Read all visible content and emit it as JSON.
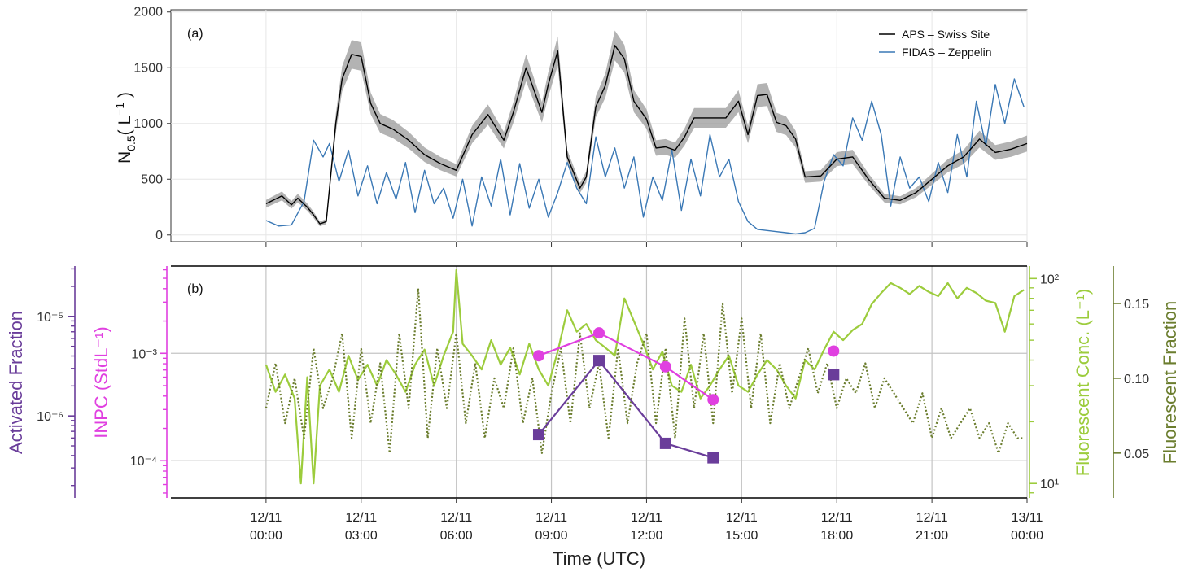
{
  "chart_data": [
    {
      "panel_label": "(a)",
      "type": "line",
      "ylabel": "N0.5 ( L⁻¹ )",
      "ylabel_main": "N",
      "ylabel_sub": "0.5",
      "ylabel_unit_open": "( L",
      "ylabel_unit_exp": "−1",
      "ylabel_unit_close": " )",
      "ylim": [
        -60,
        2020
      ],
      "yticks": [
        "0",
        "500",
        "1000",
        "1500",
        "2000"
      ],
      "x_hours_range": [
        -3,
        24
      ],
      "grid": true,
      "legend_position": "top-right",
      "series": [
        {
          "name": "APS – Swiss Site",
          "color": "#000000",
          "band_color": "#9a9a9a",
          "x": [
            0,
            0.5,
            0.8,
            1.0,
            1.3,
            1.5,
            1.7,
            1.9,
            2.2,
            2.4,
            2.7,
            3.0,
            3.3,
            3.6,
            4.0,
            4.5,
            5.0,
            5.5,
            6.0,
            6.5,
            7.0,
            7.5,
            7.8,
            8.2,
            8.5,
            8.7,
            8.9,
            9.2,
            9.5,
            9.7,
            9.9,
            10.1,
            10.4,
            10.7,
            11.0,
            11.3,
            11.6,
            12.0,
            12.3,
            12.6,
            12.9,
            13.2,
            13.5,
            14.0,
            14.5,
            14.9,
            15.2,
            15.5,
            15.8,
            16.1,
            16.4,
            16.7,
            17.0,
            17.5,
            18.0,
            18.5,
            19.0,
            19.5,
            20.0,
            20.5,
            21.0,
            21.5,
            22.0,
            22.5,
            23.0,
            23.5,
            24.0
          ],
          "y": [
            280,
            350,
            270,
            330,
            250,
            180,
            100,
            120,
            1000,
            1400,
            1620,
            1600,
            1180,
            1000,
            950,
            850,
            720,
            640,
            580,
            900,
            1080,
            850,
            1100,
            1500,
            1260,
            1100,
            1350,
            1650,
            700,
            560,
            420,
            520,
            1150,
            1340,
            1700,
            1580,
            1200,
            1040,
            780,
            790,
            760,
            880,
            1050,
            1050,
            1050,
            1200,
            900,
            1250,
            1260,
            1010,
            980,
            860,
            520,
            530,
            680,
            700,
            500,
            330,
            310,
            380,
            500,
            620,
            700,
            860,
            740,
            770,
            820
          ]
        },
        {
          "name": "FIDAS – Zeppelin",
          "color": "#3a78b5",
          "x": [
            0,
            0.4,
            0.8,
            1.2,
            1.5,
            1.8,
            2.0,
            2.3,
            2.6,
            2.9,
            3.2,
            3.5,
            3.8,
            4.1,
            4.4,
            4.7,
            5.0,
            5.3,
            5.6,
            5.9,
            6.2,
            6.5,
            6.8,
            7.1,
            7.4,
            7.7,
            8.0,
            8.3,
            8.6,
            8.9,
            9.2,
            9.5,
            9.8,
            10.1,
            10.4,
            10.7,
            11.0,
            11.3,
            11.6,
            11.9,
            12.2,
            12.5,
            12.8,
            13.1,
            13.4,
            13.7,
            14.0,
            14.3,
            14.6,
            14.9,
            15.2,
            15.5,
            15.8,
            16.1,
            16.4,
            16.7,
            17.0,
            17.3,
            17.6,
            17.9,
            18.2,
            18.5,
            18.8,
            19.1,
            19.4,
            19.7,
            20.0,
            20.3,
            20.6,
            20.9,
            21.2,
            21.5,
            21.8,
            22.1,
            22.4,
            22.7,
            23.0,
            23.3,
            23.6,
            23.9
          ],
          "y": [
            130,
            80,
            90,
            300,
            850,
            700,
            820,
            480,
            760,
            350,
            620,
            280,
            560,
            320,
            650,
            200,
            580,
            280,
            420,
            150,
            500,
            80,
            520,
            260,
            680,
            180,
            640,
            240,
            500,
            160,
            380,
            650,
            420,
            280,
            880,
            520,
            780,
            420,
            700,
            160,
            520,
            310,
            760,
            220,
            680,
            350,
            900,
            520,
            680,
            300,
            120,
            50,
            40,
            30,
            20,
            10,
            20,
            60,
            480,
            720,
            620,
            1050,
            850,
            1200,
            900,
            260,
            700,
            420,
            520,
            300,
            650,
            380,
            900,
            520,
            1200,
            800,
            1350,
            1000,
            1400,
            1150
          ]
        }
      ]
    },
    {
      "panel_label": "(b)",
      "type": "line",
      "xlabel": "Time (UTC)",
      "x_hours_range": [
        -3,
        24
      ],
      "grid": true,
      "xtick_labels": [
        [
          "12/11",
          "00:00"
        ],
        [
          "12/11",
          "03:00"
        ],
        [
          "12/11",
          "06:00"
        ],
        [
          "12/11",
          "09:00"
        ],
        [
          "12/11",
          "12:00"
        ],
        [
          "12/11",
          "15:00"
        ],
        [
          "12/11",
          "18:00"
        ],
        [
          "12/11",
          "21:00"
        ],
        [
          "13/11",
          "00:00"
        ]
      ],
      "axes": {
        "activated_fraction": {
          "label": "Activated Fraction",
          "scale": "log",
          "ylim": [
            1.5e-07,
            3.2e-05
          ],
          "ticks": [
            "10⁻⁵",
            "10⁻⁶"
          ],
          "tick_values": [
            1e-05,
            1e-06
          ],
          "color": "#6a3d9a"
        },
        "inpc": {
          "label": "INPC (StdL⁻¹)",
          "scale": "log",
          "ylim": [
            4.5e-05,
            0.0065
          ],
          "ticks": [
            "10⁻³",
            "10⁻⁴"
          ],
          "tick_values": [
            0.001,
            0.0001
          ],
          "color": "#e040e0"
        },
        "fluorescent_conc": {
          "label": "Fluorescent Conc. (L⁻¹)",
          "scale": "log",
          "ylim": [
            8.5,
            115
          ],
          "ticks": [
            "10²",
            "10¹"
          ],
          "tick_values": [
            100,
            10
          ],
          "color": "#9ccc3c"
        },
        "fluorescent_fraction": {
          "label": "Fluorescent Fraction",
          "scale": "linear",
          "ylim": [
            0.02,
            0.175
          ],
          "ticks": [
            "0.15",
            "0.10",
            "0.05"
          ],
          "tick_values": [
            0.15,
            0.1,
            0.05
          ],
          "color": "#6b7d2e"
        }
      },
      "series": [
        {
          "name": "Fluorescent Conc.",
          "axis": "fluorescent_conc",
          "style": "solid",
          "color": "#9ccc3c",
          "x": [
            0,
            0.3,
            0.6,
            0.9,
            1.1,
            1.3,
            1.5,
            1.7,
            2.0,
            2.3,
            2.6,
            2.9,
            3.2,
            3.5,
            3.8,
            4.1,
            4.4,
            4.7,
            5.0,
            5.3,
            5.6,
            5.9,
            6.0,
            6.2,
            6.5,
            6.8,
            7.1,
            7.4,
            7.7,
            8.0,
            8.3,
            8.6,
            8.9,
            9.2,
            9.5,
            9.8,
            10.1,
            10.4,
            10.7,
            11.0,
            11.3,
            11.6,
            11.9,
            12.2,
            12.5,
            12.8,
            13.1,
            13.4,
            13.7,
            14.0,
            14.3,
            14.6,
            14.9,
            15.2,
            15.5,
            15.8,
            16.1,
            16.4,
            16.7,
            17.0,
            17.3,
            17.6,
            17.9,
            18.2,
            18.5,
            18.8,
            19.1,
            19.4,
            19.7,
            20.0,
            20.3,
            20.6,
            20.9,
            21.2,
            21.5,
            21.8,
            22.1,
            22.4,
            22.7,
            23.0,
            23.3,
            23.6,
            23.9
          ],
          "y": [
            38,
            28,
            34,
            26,
            10,
            33,
            10,
            30,
            36,
            28,
            42,
            32,
            38,
            30,
            40,
            34,
            28,
            38,
            45,
            30,
            42,
            55,
            110,
            48,
            42,
            36,
            50,
            38,
            46,
            34,
            48,
            36,
            30,
            44,
            70,
            55,
            60,
            50,
            46,
            42,
            80,
            62,
            48,
            36,
            44,
            30,
            28,
            38,
            26,
            30,
            36,
            42,
            30,
            28,
            34,
            40,
            36,
            30,
            26,
            40,
            36,
            45,
            55,
            50,
            56,
            60,
            75,
            85,
            95,
            90,
            84,
            92,
            86,
            82,
            95,
            80,
            90,
            85,
            78,
            76,
            55,
            82,
            88
          ]
        },
        {
          "name": "Fluorescent Fraction",
          "axis": "fluorescent_fraction",
          "style": "dotted",
          "color": "#6b7d2e",
          "x": [
            0,
            0.3,
            0.6,
            0.9,
            1.2,
            1.5,
            1.8,
            2.1,
            2.4,
            2.7,
            3.0,
            3.3,
            3.6,
            3.9,
            4.2,
            4.5,
            4.8,
            5.1,
            5.4,
            5.7,
            6.0,
            6.3,
            6.6,
            6.9,
            7.2,
            7.5,
            7.8,
            8.1,
            8.4,
            8.7,
            9.0,
            9.3,
            9.6,
            9.9,
            10.2,
            10.5,
            10.8,
            11.1,
            11.4,
            11.7,
            12.0,
            12.3,
            12.6,
            12.9,
            13.2,
            13.5,
            13.8,
            14.1,
            14.4,
            14.7,
            15.0,
            15.3,
            15.6,
            15.9,
            16.2,
            16.5,
            16.8,
            17.1,
            17.4,
            17.7,
            18.0,
            18.3,
            18.6,
            18.9,
            19.2,
            19.5,
            19.8,
            20.1,
            20.4,
            20.7,
            21.0,
            21.3,
            21.6,
            21.9,
            22.2,
            22.5,
            22.8,
            23.1,
            23.4,
            23.7,
            23.9
          ],
          "y": [
            0.08,
            0.11,
            0.07,
            0.1,
            0.06,
            0.12,
            0.08,
            0.1,
            0.13,
            0.06,
            0.12,
            0.07,
            0.11,
            0.05,
            0.13,
            0.08,
            0.16,
            0.06,
            0.12,
            0.08,
            0.13,
            0.07,
            0.11,
            0.06,
            0.1,
            0.08,
            0.12,
            0.07,
            0.1,
            0.05,
            0.09,
            0.12,
            0.07,
            0.13,
            0.08,
            0.11,
            0.06,
            0.12,
            0.07,
            0.11,
            0.13,
            0.07,
            0.12,
            0.06,
            0.14,
            0.08,
            0.13,
            0.07,
            0.15,
            0.09,
            0.14,
            0.08,
            0.13,
            0.07,
            0.11,
            0.08,
            0.1,
            0.12,
            0.09,
            0.11,
            0.08,
            0.1,
            0.09,
            0.11,
            0.08,
            0.1,
            0.09,
            0.08,
            0.07,
            0.09,
            0.06,
            0.08,
            0.06,
            0.07,
            0.08,
            0.06,
            0.07,
            0.05,
            0.07,
            0.06,
            0.06
          ]
        },
        {
          "name": "INPC",
          "axis": "inpc",
          "style": "solid",
          "marker": "circle",
          "color": "#e040e0",
          "x": [
            8.6,
            10.5,
            12.6,
            14.1,
            17.9
          ],
          "y": [
            0.00095,
            0.00155,
            0.00075,
            0.00037,
            0.00105
          ],
          "connected_points": 4
        },
        {
          "name": "Activated Fraction",
          "axis": "activated_fraction",
          "style": "solid",
          "marker": "square",
          "color": "#6a3d9a",
          "x": [
            8.6,
            10.5,
            12.6,
            14.1,
            17.9
          ],
          "y": [
            6.5e-07,
            3.6e-06,
            5.3e-07,
            3.8e-07,
            2.6e-06
          ],
          "connected_points": 4
        }
      ]
    }
  ]
}
